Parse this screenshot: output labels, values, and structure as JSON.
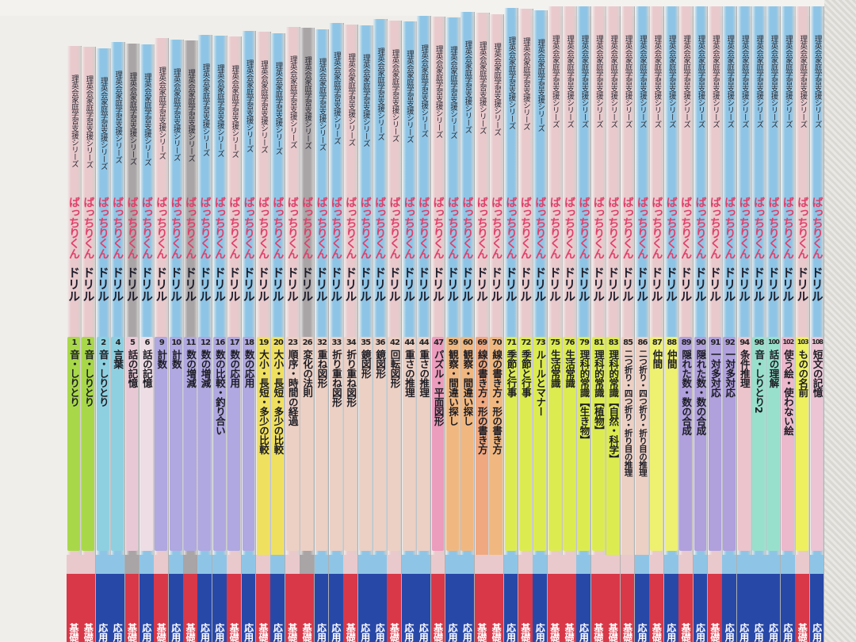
{
  "series_text": "理英会家庭学習支援シリーズ",
  "logo_text": "ばっちりくん",
  "logo_suffix": "ドリル",
  "colors": {
    "spine_blue": "#8ec5e6",
    "spine_pink": "#e9c9cc",
    "spine_grey": "#a9a4a6",
    "logo_pink": "#e0406a",
    "level_basic_red": "#d83848",
    "level_applied_blue": "#2848a8"
  },
  "books": [
    {
      "num": "1",
      "title": "音・しりとり",
      "label": "#a8d84a",
      "spine": "pink",
      "level": "基礎"
    },
    {
      "num": "1",
      "title": "音・しりとり",
      "label": "#a8d84a",
      "spine": "pink",
      "level": "基礎"
    },
    {
      "num": "2",
      "title": "音・しりとり",
      "label": "#8fd0e0",
      "spine": "blue",
      "level": "応用"
    },
    {
      "num": "4",
      "title": "言葉",
      "label": "#8fd0e0",
      "spine": "blue",
      "level": "応用"
    },
    {
      "num": "5",
      "title": "話の記憶",
      "label": "#e8c8d4",
      "spine": "grey",
      "level": "基礎"
    },
    {
      "num": "6",
      "title": "話の記憶",
      "label": "#eedde4",
      "spine": "blue",
      "level": "応用"
    },
    {
      "num": "9",
      "title": "計数",
      "label": "#b0a8e0",
      "spine": "pink",
      "level": "基礎"
    },
    {
      "num": "10",
      "title": "計数",
      "label": "#b0a8e0",
      "spine": "blue",
      "level": "応用"
    },
    {
      "num": "11",
      "title": "数の増減",
      "label": "#b0a8e0",
      "spine": "grey",
      "level": "基礎"
    },
    {
      "num": "12",
      "title": "数の増減",
      "label": "#b0a8e0",
      "spine": "blue",
      "level": "応用"
    },
    {
      "num": "16",
      "title": "数の比較・釣り合い",
      "label": "#b0a8e0",
      "spine": "blue",
      "level": "応用"
    },
    {
      "num": "17",
      "title": "数の応用",
      "label": "#b0a8e0",
      "spine": "pink",
      "level": "基礎"
    },
    {
      "num": "18",
      "title": "数の応用",
      "label": "#b0a8e0",
      "spine": "blue",
      "level": "応用"
    },
    {
      "num": "19",
      "title": "大小・長短・多少の比較",
      "label": "#f0e060",
      "spine": "pink",
      "level": "基礎"
    },
    {
      "num": "20",
      "title": "大小・長短・多少の比較",
      "label": "#f0e060",
      "spine": "blue",
      "level": "応用"
    },
    {
      "num": "23",
      "title": "順序・時間の経過",
      "label": "#ecd0c4",
      "spine": "pink",
      "level": "基礎"
    },
    {
      "num": "26",
      "title": "変化の法則",
      "label": "#ecd0c4",
      "spine": "grey",
      "level": "基礎"
    },
    {
      "num": "32",
      "title": "重ね図形",
      "label": "#ecd0c4",
      "spine": "blue",
      "level": "応用"
    },
    {
      "num": "33",
      "title": "折り重ね図形",
      "label": "#ecd0c4",
      "spine": "blue",
      "level": "応用"
    },
    {
      "num": "34",
      "title": "折り重ね図形",
      "label": "#ecd0c4",
      "spine": "pink",
      "level": "基礎"
    },
    {
      "num": "35",
      "title": "鏡図形",
      "label": "#ecd0c4",
      "spine": "blue",
      "level": "応用"
    },
    {
      "num": "36",
      "title": "鏡図形",
      "label": "#ecd0c4",
      "spine": "blue",
      "level": "応用"
    },
    {
      "num": "42",
      "title": "回転図形",
      "label": "#ecd0c4",
      "spine": "pink",
      "level": "基礎"
    },
    {
      "num": "44",
      "title": "重さの推理",
      "label": "#ecd0c4",
      "spine": "blue",
      "level": "応用"
    },
    {
      "num": "44",
      "title": "重さの推理",
      "label": "#ecd0c4",
      "spine": "blue",
      "level": "応用"
    },
    {
      "num": "47",
      "title": "パズル・平面図形",
      "label": "#ec9cbc",
      "spine": "pink",
      "level": "基礎"
    },
    {
      "num": "59",
      "title": "観察・間違い探し",
      "label": "#f0b880",
      "spine": "blue",
      "level": "応用"
    },
    {
      "num": "60",
      "title": "観察・間違い探し",
      "label": "#f0b880",
      "spine": "blue",
      "level": "応用"
    },
    {
      "num": "69",
      "title": "線の書き方・形の書き方",
      "label": "#f0a880",
      "spine": "pink",
      "level": "基礎"
    },
    {
      "num": "70",
      "title": "線の書き方・形の書き方",
      "label": "#f0b880",
      "spine": "pink",
      "level": "基礎"
    },
    {
      "num": "71",
      "title": "季節と行事",
      "label": "#dcec50",
      "spine": "blue",
      "level": "応用"
    },
    {
      "num": "72",
      "title": "季節と行事",
      "label": "#dcec50",
      "spine": "pink",
      "level": "基礎"
    },
    {
      "num": "73",
      "title": "ルールとマナー",
      "label": "#dcec50",
      "spine": "blue",
      "level": "応用"
    },
    {
      "num": "75",
      "title": "生活常識",
      "label": "#dcec50",
      "spine": "pink",
      "level": "基礎"
    },
    {
      "num": "76",
      "title": "生活常識",
      "label": "#dcec50",
      "spine": "pink",
      "level": "基礎"
    },
    {
      "num": "79",
      "title": "理科的常識【生き物】",
      "label": "#dcec50",
      "spine": "blue",
      "level": "応用"
    },
    {
      "num": "81",
      "title": "理科的常識【植物】",
      "label": "#dcec50",
      "spine": "pink",
      "level": "基礎"
    },
    {
      "num": "83",
      "title": "理科的常識【自然・科学】",
      "label": "#dcec50",
      "spine": "pink",
      "level": "基礎"
    },
    {
      "num": "85",
      "title": "二つ折り・四つ折り・折り目の推理",
      "label": "#ecd0c4",
      "spine": "pink",
      "level": "基礎"
    },
    {
      "num": "86",
      "title": "二つ折り・四つ折り・折り目の推理",
      "label": "#ecd0c4",
      "spine": "blue",
      "level": "応用"
    },
    {
      "num": "87",
      "title": "仲間",
      "label": "#eef070",
      "spine": "pink",
      "level": "基礎"
    },
    {
      "num": "88",
      "title": "仲間",
      "label": "#eef070",
      "spine": "blue",
      "level": "応用"
    },
    {
      "num": "89",
      "title": "隠れた数・数の合成",
      "label": "#b0a0dc",
      "spine": "pink",
      "level": "基礎"
    },
    {
      "num": "90",
      "title": "隠れた数・数の合成",
      "label": "#b0a0dc",
      "spine": "blue",
      "level": "応用"
    },
    {
      "num": "91",
      "title": "一対多対応",
      "label": "#b0a0dc",
      "spine": "pink",
      "level": "基礎"
    },
    {
      "num": "92",
      "title": "一対多対応",
      "label": "#b0a0dc",
      "spine": "blue",
      "level": "応用"
    },
    {
      "num": "94",
      "title": "条件推理",
      "label": "#ecc4cc",
      "spine": "blue",
      "level": "応用"
    },
    {
      "num": "98",
      "title": "音・しりとり2",
      "label": "#98e0cc",
      "spine": "blue",
      "level": "応用"
    },
    {
      "num": "100",
      "title": "話の理解",
      "label": "#98e0cc",
      "spine": "blue",
      "level": "応用"
    },
    {
      "num": "102",
      "title": "使う絵・使わない絵",
      "label": "#ecb8cc",
      "spine": "blue",
      "level": "応用"
    },
    {
      "num": "103",
      "title": "ものの名前",
      "label": "#eef060",
      "spine": "pink",
      "level": "基礎"
    },
    {
      "num": "108",
      "title": "短文の記憶",
      "label": "#ecc4d4",
      "spine": "blue",
      "level": "応用"
    }
  ]
}
